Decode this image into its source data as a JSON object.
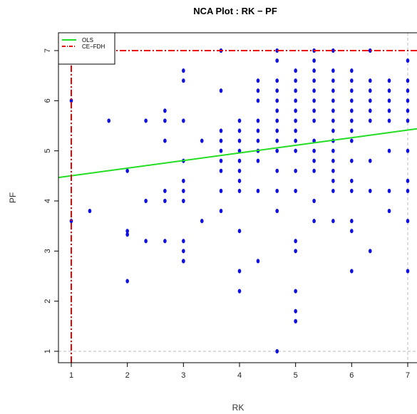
{
  "chart_data": {
    "type": "scatter",
    "title": "NCA Plot : RK − PF",
    "xlabel": "RK",
    "ylabel": "PF",
    "xlim": [
      1,
      7
    ],
    "ylim": [
      1,
      7
    ],
    "xticks": [
      "1",
      "2",
      "3",
      "4",
      "5",
      "6",
      "7"
    ],
    "yticks": [
      "1",
      "2",
      "3",
      "4",
      "5",
      "6",
      "7"
    ],
    "legend": {
      "placement": "top-left",
      "entries": [
        {
          "label": "OLS",
          "color": "#22dd22",
          "style": "solid"
        },
        {
          "label": "CE−FDH",
          "color": "#ee0000",
          "style": "dashdot"
        }
      ]
    },
    "colors": {
      "points": "#1010e0",
      "ols": "#22dd22",
      "ce_fdh": "#ee0000",
      "reference": "#bbbbbb"
    },
    "ols_line": {
      "intercept": 4.35,
      "slope": 0.152
    },
    "ce_fdh_ceiling": {
      "x": [
        1,
        1,
        7
      ],
      "y": [
        1,
        7,
        7
      ]
    },
    "reference_lines": {
      "x_min": 1,
      "x_max": 7,
      "y_min": 1
    },
    "points": {
      "x": [
        1,
        1,
        1,
        1,
        1.33,
        1.67,
        2,
        2,
        2,
        2,
        2.33,
        2.33,
        2.33,
        2.67,
        2.67,
        2.67,
        2.67,
        2.67,
        2.67,
        3,
        3,
        3,
        3,
        3,
        3,
        3,
        3,
        3,
        3,
        3,
        3.33,
        3.33,
        3.67,
        3.67,
        3.67,
        3.67,
        3.67,
        3.67,
        3.67,
        3.67,
        3.67,
        4,
        4,
        4,
        4,
        4,
        4,
        4,
        4,
        4,
        4,
        4,
        4.33,
        4.33,
        4.33,
        4.33,
        4.33,
        4.33,
        4.33,
        4.33,
        4.33,
        4.33,
        4.67,
        4.67,
        4.67,
        4.67,
        4.67,
        4.67,
        4.67,
        4.67,
        4.67,
        4.67,
        4.67,
        4.67,
        4.67,
        4.67,
        5,
        5,
        5,
        5,
        5,
        5,
        5,
        5,
        5,
        5,
        5,
        5,
        5,
        5,
        5,
        5,
        5,
        5.33,
        5.33,
        5.33,
        5.33,
        5.33,
        5.33,
        5.33,
        5.33,
        5.33,
        5.33,
        5.33,
        5.33,
        5.33,
        5.33,
        5.67,
        5.67,
        5.67,
        5.67,
        5.67,
        5.67,
        5.67,
        5.67,
        5.67,
        5.67,
        5.67,
        5.67,
        5.67,
        5.67,
        5.67,
        6,
        6,
        6,
        6,
        6,
        6,
        6,
        6,
        6,
        6,
        6,
        6,
        6,
        6,
        6.33,
        6.33,
        6.33,
        6.33,
        6.33,
        6.33,
        6.33,
        6.33,
        6.33,
        6.67,
        6.67,
        6.67,
        6.67,
        6.67,
        6.67,
        6.67,
        6.67,
        7,
        7,
        7,
        7,
        7,
        7,
        7,
        7,
        7,
        7,
        7
      ],
      "y": [
        7,
        6,
        3.6,
        7,
        3.8,
        5.6,
        4.6,
        3.4,
        3.33,
        2.4,
        5.6,
        4,
        3.2,
        5.8,
        5.6,
        5.2,
        4.2,
        4,
        3.2,
        6.6,
        6.4,
        5.6,
        4.8,
        4.4,
        4.2,
        4,
        3.2,
        3,
        2.8,
        2.8,
        5.2,
        3.6,
        7,
        6.2,
        5.4,
        5.2,
        5,
        4.8,
        4.6,
        4.2,
        3.8,
        5.6,
        5.4,
        5.2,
        5,
        4.8,
        4.6,
        4.4,
        4.2,
        3.4,
        2.6,
        2.2,
        6.4,
        6.2,
        6,
        5.6,
        5.4,
        5.2,
        5,
        4.8,
        4.2,
        2.8,
        7,
        6.8,
        6.4,
        6.2,
        6,
        5.8,
        5.6,
        5.4,
        5.2,
        5,
        4.6,
        4.2,
        3.8,
        1,
        6.6,
        6.4,
        6.2,
        6,
        5.8,
        5.6,
        5.4,
        5.2,
        5,
        4.6,
        4.2,
        3.2,
        3,
        2.2,
        1.8,
        1.6,
        1.6,
        7,
        6.8,
        6.6,
        6.4,
        6.2,
        6,
        5.8,
        5.6,
        5.2,
        5,
        4.8,
        4.6,
        4,
        3.6,
        7,
        6.6,
        6.4,
        6.2,
        6,
        5.8,
        5.6,
        5.4,
        5.2,
        5,
        4.8,
        4.6,
        4.4,
        4.2,
        3.6,
        6.6,
        6.4,
        6.2,
        6,
        5.8,
        5.6,
        5.4,
        5.2,
        4.8,
        4.4,
        4.2,
        3.6,
        3.4,
        2.6,
        7,
        6.4,
        6.2,
        6,
        5.8,
        5.6,
        4.8,
        4.2,
        3,
        6.4,
        6.2,
        6,
        5.8,
        5.6,
        5,
        4.2,
        3.8,
        6.8,
        6.4,
        6.2,
        6,
        5.8,
        5.6,
        5,
        4.4,
        4.2,
        3.6,
        2.6
      ]
    }
  }
}
